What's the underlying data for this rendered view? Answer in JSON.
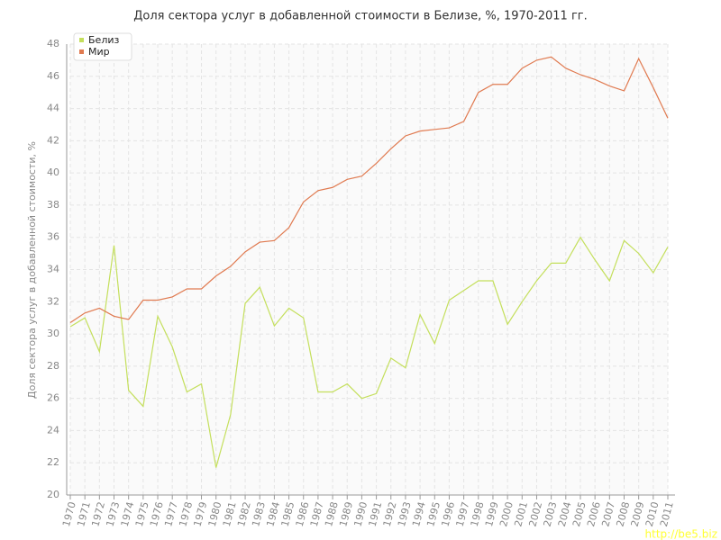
{
  "chart_data": {
    "type": "line",
    "title": "Доля сектора услуг в добавленной стоимости в Белизе, %, 1970-2011 гг.",
    "y_label": "Доля сектора услуг в добавленной стоимости, %",
    "watermark": "http://be5.biz",
    "categories": [
      "1970",
      "1971",
      "1972",
      "1973",
      "1974",
      "1975",
      "1976",
      "1977",
      "1978",
      "1979",
      "1980",
      "1981",
      "1982",
      "1983",
      "1984",
      "1985",
      "1986",
      "1987",
      "1988",
      "1989",
      "1990",
      "1991",
      "1992",
      "1993",
      "1994",
      "1995",
      "1996",
      "1997",
      "1998",
      "1999",
      "2000",
      "2001",
      "2002",
      "2003",
      "2004",
      "2005",
      "2006",
      "2007",
      "2008",
      "2009",
      "2010",
      "2011"
    ],
    "series": [
      {
        "name": "Белиз",
        "color": "#c4df5c",
        "values": [
          30.45,
          31.0,
          28.9,
          35.5,
          26.5,
          25.5,
          31.1,
          29.2,
          26.4,
          26.9,
          21.7,
          25.0,
          31.9,
          32.9,
          30.5,
          31.6,
          31.0,
          26.4,
          26.4,
          26.9,
          26.0,
          26.3,
          28.5,
          27.9,
          31.2,
          29.4,
          32.1,
          32.7,
          33.3,
          33.3,
          30.6,
          32.0,
          33.3,
          34.4,
          34.4,
          36.0,
          34.6,
          33.3,
          35.8,
          35.0,
          33.8,
          35.4
        ]
      },
      {
        "name": "Мир",
        "color": "#e07a50",
        "values": [
          30.7,
          31.3,
          31.6,
          31.1,
          30.9,
          32.1,
          32.1,
          32.3,
          32.8,
          32.8,
          33.6,
          34.2,
          35.1,
          35.7,
          35.8,
          36.6,
          38.2,
          38.9,
          39.1,
          39.6,
          39.8,
          40.6,
          41.5,
          42.3,
          42.6,
          42.7,
          42.8,
          43.2,
          45.0,
          45.5,
          45.5,
          46.5,
          47.0,
          47.2,
          46.5,
          46.1,
          45.8,
          45.4,
          45.1,
          47.1,
          45.3,
          43.4
        ]
      }
    ],
    "ylim": [
      20,
      48
    ],
    "yticks": [
      20,
      22,
      24,
      26,
      28,
      30,
      32,
      34,
      36,
      38,
      40,
      42,
      44,
      46,
      48
    ],
    "grid": true,
    "legend": "top-left"
  }
}
